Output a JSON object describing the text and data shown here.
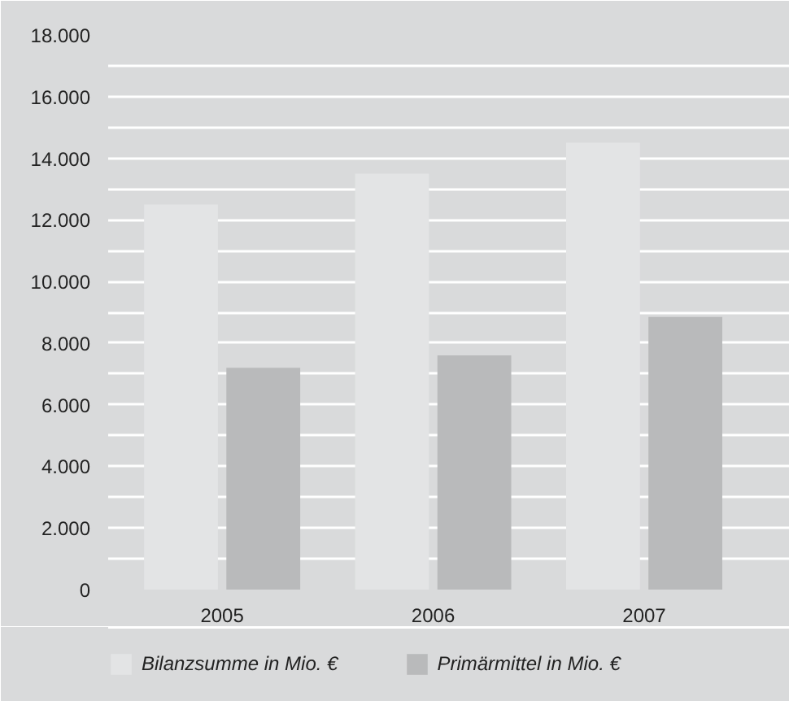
{
  "chart_data": {
    "type": "bar",
    "categories": [
      "2005",
      "2006",
      "2007"
    ],
    "series": [
      {
        "name": "Bilanzsumme in Mio. €",
        "color": "#e3e4e5",
        "values": [
          12500,
          13500,
          14500
        ]
      },
      {
        "name": "Primärmittel in Mio. €",
        "color": "#b9babb",
        "values": [
          7200,
          7600,
          8850
        ]
      }
    ],
    "ylim": [
      0,
      18000
    ],
    "yticks": [
      0,
      {
        "value": 1000,
        "label": null
      },
      {
        "value": 2000,
        "label": "2.000"
      },
      {
        "value": 3000,
        "label": null
      },
      {
        "value": 4000,
        "label": "4.000"
      },
      {
        "value": 5000,
        "label": null
      },
      {
        "value": 6000,
        "label": "6.000"
      },
      {
        "value": 7000,
        "label": null
      },
      {
        "value": 8000,
        "label": "8.000"
      },
      {
        "value": 9000,
        "label": null
      },
      {
        "value": 10000,
        "label": "10.000"
      },
      {
        "value": 11000,
        "label": null
      },
      {
        "value": 12000,
        "label": "12.000"
      },
      {
        "value": 13000,
        "label": null
      },
      {
        "value": 14000,
        "label": "14.000"
      },
      {
        "value": 15000,
        "label": null
      },
      {
        "value": 16000,
        "label": "16.000"
      },
      {
        "value": 17000,
        "label": null
      },
      {
        "value": 18000,
        "label": "18.000"
      }
    ],
    "grid": "y",
    "legend": "bottom"
  }
}
